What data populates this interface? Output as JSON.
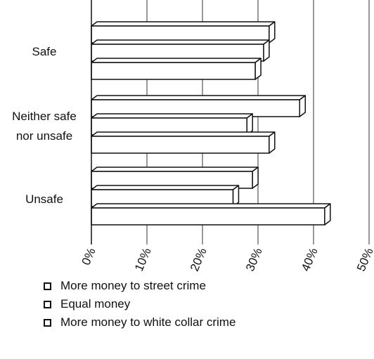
{
  "chart_data": {
    "type": "bar",
    "orientation": "horizontal",
    "style": "3d",
    "categories": [
      "Safe",
      "Neither safe nor unsafe",
      "Unsafe"
    ],
    "category_lines": [
      [
        "Safe"
      ],
      [
        "Neither safe",
        "nor unsafe"
      ],
      [
        "Unsafe"
      ]
    ],
    "series": [
      {
        "name": "More money to street crime",
        "values": [
          32,
          37.5,
          29
        ]
      },
      {
        "name": "Equal money",
        "values": [
          31,
          28,
          25.5
        ]
      },
      {
        "name": "More money to white collar crime",
        "values": [
          29.5,
          32,
          42
        ]
      }
    ],
    "xlim": [
      0,
      50
    ],
    "x_ticks": [
      "0%",
      "10%",
      "20%",
      "30%",
      "40%",
      "50%"
    ],
    "grid": "vertical",
    "legend_position": "bottom-left",
    "title": "",
    "xlabel": "",
    "ylabel": ""
  }
}
